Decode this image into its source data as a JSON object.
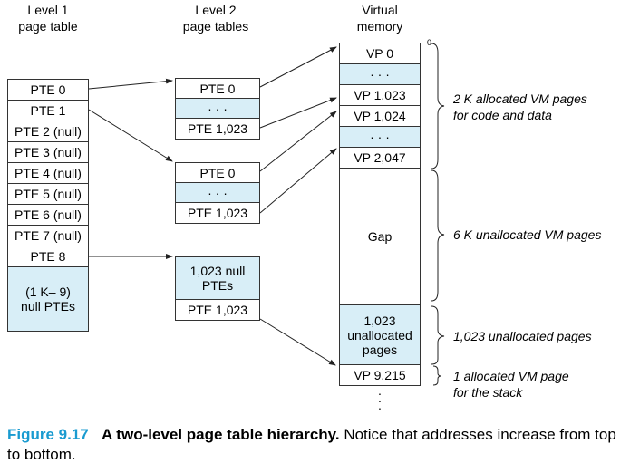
{
  "headers": {
    "level1": [
      "Level 1",
      "page table"
    ],
    "level2": [
      "Level 2",
      "page tables"
    ],
    "vm": [
      "Virtual",
      "memory"
    ]
  },
  "level1_table": {
    "entries": [
      "PTE 0",
      "PTE 1",
      "PTE 2 (null)",
      "PTE 3 (null)",
      "PTE 4 (null)",
      "PTE 5 (null)",
      "PTE 6 (null)",
      "PTE 7 (null)",
      "PTE 8"
    ],
    "null_block": [
      "(1 K– 9)",
      "null PTEs"
    ]
  },
  "level2_tables": [
    {
      "first": "PTE 0",
      "middle": "· · ·",
      "last": "PTE 1,023"
    },
    {
      "first": "PTE 0",
      "middle": "· · ·",
      "last": "PTE 1,023"
    },
    {
      "null_block": [
        "1,023 null",
        "PTEs"
      ],
      "last": "PTE 1,023"
    }
  ],
  "virtual_memory": {
    "zero_marker": "0",
    "vp0": "VP 0",
    "dots1": "· · ·",
    "vp1023": "VP 1,023",
    "vp1024": "VP 1,024",
    "dots2": "· · ·",
    "vp2047": "VP 2,047",
    "gap": "Gap",
    "unalloc": [
      "1,023",
      "unallocated",
      "pages"
    ],
    "vp9215": "VP 9,215",
    "trailing_dots": "⋮"
  },
  "annotations": {
    "code_data": [
      "2 K allocated VM pages",
      "for code and data"
    ],
    "unallocated": "6 K unallocated VM pages",
    "unalloc_pages": "1,023 unallocated pages",
    "stack": [
      "1 allocated VM page",
      "for the stack"
    ]
  },
  "caption": {
    "figure": "Figure 9.17",
    "title": "A two-level page table hierarchy.",
    "text": "Notice that addresses increase from top to bottom."
  },
  "colors": {
    "highlight": "#d8eef7",
    "caption_blue": "#1a9bd0"
  }
}
